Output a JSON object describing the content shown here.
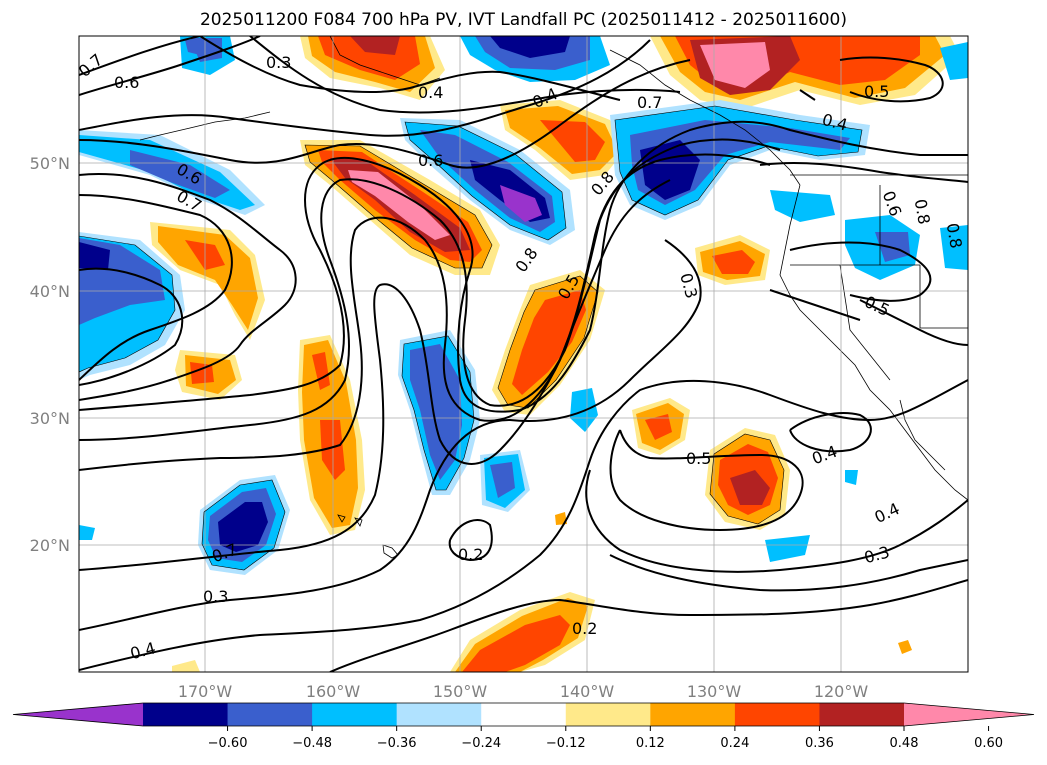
{
  "title": "2025011200 F084 700 hPa PV, IVT Landfall PC (2025011412 - 2025011600)",
  "lat_labels": [
    "50°N",
    "40°N",
    "30°N",
    "20°N"
  ],
  "lon_labels": [
    "170°W",
    "160°W",
    "150°W",
    "140°W",
    "130°W",
    "120°W"
  ],
  "colorbar": {
    "colors": [
      "#9933cc",
      "#00008b",
      "#3a5fcd",
      "#00bfff",
      "#b0e2ff",
      "#ffffff",
      "#ffe98a",
      "#ffa500",
      "#ff4500",
      "#b22222",
      "#ff88aa"
    ],
    "tick_labels": [
      "−0.60",
      "−0.48",
      "−0.36",
      "−0.24",
      "−0.12",
      "0.12",
      "0.24",
      "0.36",
      "0.48",
      "0.60"
    ]
  },
  "contour_labels": [
    {
      "text": "0.7"
    },
    {
      "text": "0.6"
    },
    {
      "text": "0.3"
    },
    {
      "text": "0.4"
    },
    {
      "text": "0.4"
    },
    {
      "text": "0.7"
    },
    {
      "text": "0.5"
    },
    {
      "text": "0.4"
    },
    {
      "text": "0.6"
    },
    {
      "text": "0.6"
    },
    {
      "text": "0.7"
    },
    {
      "text": "0.8"
    },
    {
      "text": "0.8"
    },
    {
      "text": "0.5"
    },
    {
      "text": "0.3"
    },
    {
      "text": "0.6"
    },
    {
      "text": "0.8"
    },
    {
      "text": "0.8"
    },
    {
      "text": "0.5"
    },
    {
      "text": "0.5"
    },
    {
      "text": "0.4"
    },
    {
      "text": "0.4"
    },
    {
      "text": "0.3"
    },
    {
      "text": "0.2"
    },
    {
      "text": "0.7"
    },
    {
      "text": "0.3"
    },
    {
      "text": "0.2"
    },
    {
      "text": "0.4"
    }
  ]
}
